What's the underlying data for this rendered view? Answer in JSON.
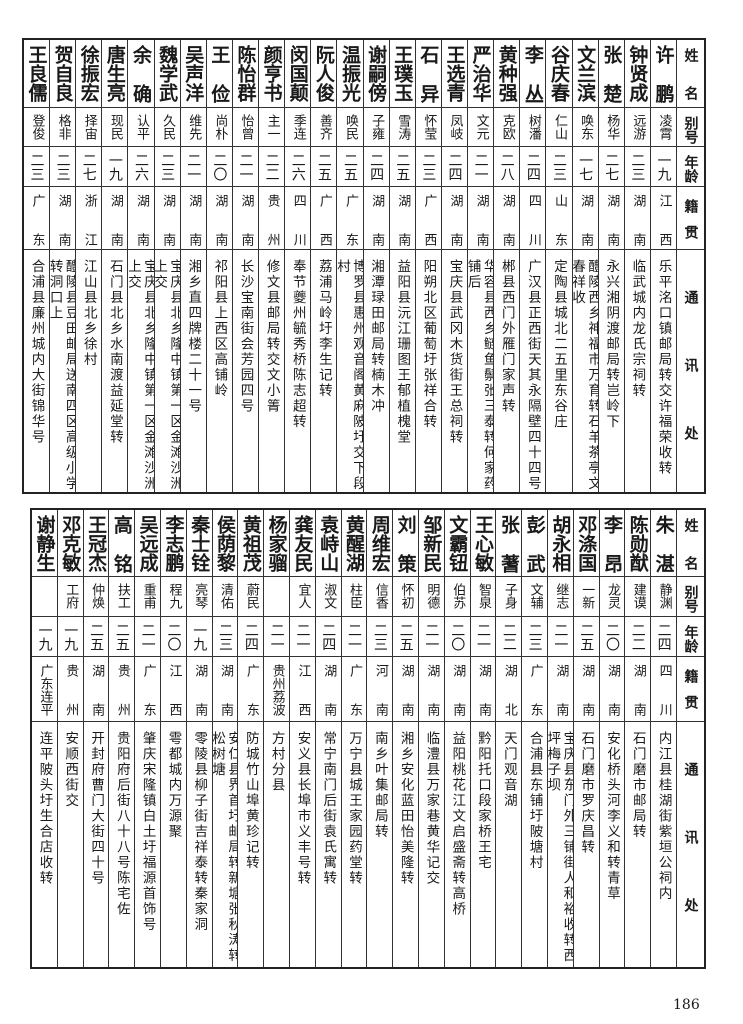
{
  "headers": {
    "name": "姓名",
    "alias": "别号",
    "age": "年龄",
    "native": "籍贯",
    "address": "通讯处"
  },
  "page_number": "186",
  "table_top": [
    {
      "name": "许鹏",
      "alias": "凌霄",
      "age": "一九",
      "native": "江西",
      "address": "乐平洺口镇邮局转交许福荣收转"
    },
    {
      "name": "钟贤成",
      "alias": "远游",
      "age": "二三",
      "native": "湖南",
      "address": "临武城内龙氏宗祠转"
    },
    {
      "name": "张楚",
      "alias": "杨华",
      "age": "二七",
      "native": "湖南",
      "address": "永兴湘阴渡邮局转岂岭下"
    },
    {
      "name": "文兰滨",
      "alias": "唤东",
      "age": "一七",
      "native": "湖南",
      "address": "醴陵西乡神福市万育转石羊茶亭文春祥收"
    },
    {
      "name": "谷庆春",
      "alias": "仁山",
      "age": "二三",
      "native": "山东",
      "address": "定陶县城北二五里东谷庄"
    },
    {
      "name": "李丛",
      "alias": "树潘",
      "age": "二四",
      "native": "四川",
      "address": "广汉县正西街天其永隔壁四十四号"
    },
    {
      "name": "黄种强",
      "alias": "克欧",
      "age": "二八",
      "native": "湖南",
      "address": "郴县西门外雁门家声转"
    },
    {
      "name": "严治华",
      "alias": "文元",
      "age": "二一",
      "native": "湖南",
      "address": "华容县西乡鲢鱼鬃张三泰转何家药铺后"
    },
    {
      "name": "王选青",
      "alias": "凤岐",
      "age": "二四",
      "native": "湖南",
      "address": "宝庆县武冈木货街王总祠转"
    },
    {
      "name": "石异",
      "alias": "怀莹",
      "age": "二三",
      "native": "广西",
      "address": "阳朔北区葡萄圩张祥合转"
    },
    {
      "name": "王璞玉",
      "alias": "雪涛",
      "age": "二五",
      "native": "湖南",
      "address": "益阳县沅江珊图王郁植槐堂"
    },
    {
      "name": "谢嗣傍",
      "alias": "子雍",
      "age": "二四",
      "native": "湖南",
      "address": "湘潭琭田邮局转楠木冲"
    },
    {
      "name": "温振光",
      "alias": "唤民",
      "age": "二五",
      "native": "广东",
      "address": "博罗县惠州观音阁黄麻陂圩交下段村"
    },
    {
      "name": "阮人俊",
      "alias": "善齐",
      "age": "二五",
      "native": "广西",
      "address": "荔浦马岭圩李生记转"
    },
    {
      "name": "闵国颠",
      "alias": "季连",
      "age": "二六",
      "native": "四川",
      "address": "奉节夔州毓秀桥陈志超转"
    },
    {
      "name": "颜亨书",
      "alias": "主一",
      "age": "二二",
      "native": "贵州",
      "address": "修文县邮局转交文小箐"
    },
    {
      "name": "陈怡群",
      "alias": "怡曾",
      "age": "二一",
      "native": "湖南",
      "address": "长沙宝南街会芳园四号"
    },
    {
      "name": "王俭",
      "alias": "尚朴",
      "age": "二〇",
      "native": "湖南",
      "address": "祁阳县上西区高铺岭"
    },
    {
      "name": "吴声洋",
      "alias": "维先",
      "age": "二一",
      "native": "湖南",
      "address": "湘乡直四牌楼二十一号"
    },
    {
      "name": "魏学武",
      "alias": "久民",
      "age": "二三",
      "native": "湖南",
      "address": "宝庆县北乡隆中镇第一区金滩沙洲上交"
    },
    {
      "name": "余确",
      "alias": "认平",
      "age": "二六",
      "native": "湖南",
      "address": "宝庆县北乡隆中镇第一区金滩沙洲上交"
    },
    {
      "name": "唐生亮",
      "alias": "现民",
      "age": "一九",
      "native": "湖南",
      "address": "石门县北乡水南渡益延堂转"
    },
    {
      "name": "徐振宏",
      "alias": "择宙",
      "age": "二七",
      "native": "浙江",
      "address": "江山县北乡徐村"
    },
    {
      "name": "贺自良",
      "alias": "格非",
      "age": "二三",
      "native": "湖南",
      "address": "醴陵县豆田邮局送南四区高级小学转洞口上"
    },
    {
      "name": "王良儒",
      "alias": "登俊",
      "age": "二三",
      "native": "广东",
      "address": "合浦县廉州城内大街锦华号"
    }
  ],
  "table_bottom": [
    {
      "name": "朱湛",
      "alias": "静渊",
      "age": "二四",
      "native": "四川",
      "address": "内江县桂湖街紫垣公祠内"
    },
    {
      "name": "陈勋猷",
      "alias": "建谟",
      "age": "二二",
      "native": "湖南",
      "address": "石门磨市邮局转"
    },
    {
      "name": "李昂",
      "alias": "龙灵",
      "age": "二〇",
      "native": "湖南",
      "address": "安化桥头河李义和转青草"
    },
    {
      "name": "邓涤国",
      "alias": "一新",
      "age": "二五",
      "native": "湖南",
      "address": "石门磨市罗庆昌转"
    },
    {
      "name": "胡永相",
      "alias": "继志",
      "age": "二一",
      "native": "湖南",
      "address": "宝庆县东门外三铺街人和裕收转西坪梅子坝"
    },
    {
      "name": "彭武",
      "alias": "文辅",
      "age": "二三",
      "native": "广东",
      "address": "合浦县东铺圩陂塘村"
    },
    {
      "name": "张蓍",
      "alias": "子身",
      "age": "二二",
      "native": "湖北",
      "address": "天门观音湖"
    },
    {
      "name": "王心敏",
      "alias": "智泉",
      "age": "二一",
      "native": "湖南",
      "address": "黔阳托口段家桥王宅"
    },
    {
      "name": "文霸钮",
      "alias": "伯苏",
      "age": "二〇",
      "native": "湖南",
      "address": "益阳桃花江文启盛斋转高桥"
    },
    {
      "name": "邹新民",
      "alias": "明德",
      "age": "二一",
      "native": "湖南",
      "address": "临澧县万家巷黄华记交"
    },
    {
      "name": "刘策",
      "alias": "怀初",
      "age": "二五",
      "native": "湖南",
      "address": "湘乡安化蓝田怡美隆转"
    },
    {
      "name": "周维宏",
      "alias": "信香",
      "age": "二三",
      "native": "河南",
      "address": "南乡叶集邮局转"
    },
    {
      "name": "黄醒湖",
      "alias": "柱臣",
      "age": "二一",
      "native": "广东",
      "address": "万宁县城王家园药堂转"
    },
    {
      "name": "袁峙山",
      "alias": "淑文",
      "age": "二四",
      "native": "湖南",
      "address": "常宁南门后街袁氏寓转"
    },
    {
      "name": "龚友民",
      "alias": "宜人",
      "age": "二一",
      "native": "江西",
      "address": "安义县长埠市义丰号转"
    },
    {
      "name": "杨家骝",
      "alias": "",
      "age": "二一",
      "native": "贵州荔波",
      "address": "方村分县"
    },
    {
      "name": "黄祖茂",
      "alias": "蔚民",
      "age": "二四",
      "native": "广东",
      "address": "防城竹山埠黄珍记转"
    },
    {
      "name": "侯荫黎",
      "alias": "清佑",
      "age": "二三",
      "native": "湖南",
      "address": "安仁县界首圩邮局转新塘张秋涛转松树塘"
    },
    {
      "name": "秦士铨",
      "alias": "亮琴",
      "age": "一九",
      "native": "湖南",
      "address": "零陵县柳子街吉祥泰转秦家洞"
    },
    {
      "name": "李志鹏",
      "alias": "程九",
      "age": "二〇",
      "native": "江西",
      "address": "雩都城内万源聚"
    },
    {
      "name": "吴远成",
      "alias": "重甫",
      "age": "二一",
      "native": "广东",
      "address": "肇庆宋隆镇白土圩福源首饰号"
    },
    {
      "name": "高铭",
      "alias": "扶工",
      "age": "二五",
      "native": "贵州",
      "address": "贵阳府后街八十八号陈宅佐"
    },
    {
      "name": "王冠杰",
      "alias": "仲焕",
      "age": "二五",
      "native": "湖南",
      "address": "开封府曹门大街四十号"
    },
    {
      "name": "邓克敏",
      "alias": "工府",
      "age": "一九",
      "native": "贵州",
      "address": "安顺西街交"
    },
    {
      "name": "谢静生",
      "alias": "",
      "age": "一九",
      "native": "广东连平",
      "address": "连平陂头圩生合店收转"
    }
  ]
}
